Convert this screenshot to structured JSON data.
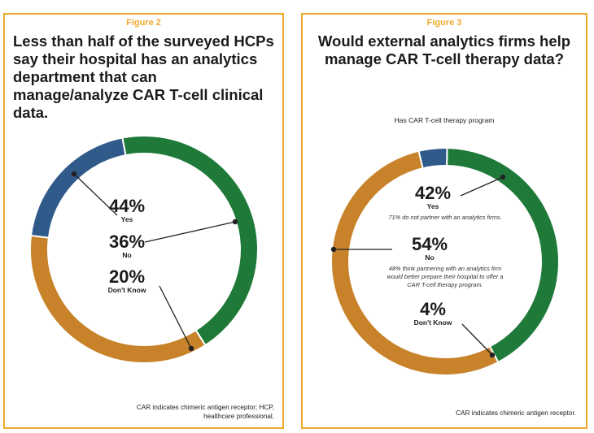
{
  "chart_data": [
    {
      "type": "pie",
      "figure_label": "Figure 2",
      "title": "Less than half of the surveyed HCPs say their hospital has an analytics department that can manage/analyze CAR T-cell clinical data.",
      "footnote": "CAR indicates chimeric antigen receptor; HCP, healthcare professional.",
      "slices": [
        {
          "label": "Yes",
          "value": 44,
          "value_label": "44%",
          "color": "#1f7a3a"
        },
        {
          "label": "No",
          "value": 36,
          "value_label": "36%",
          "color": "#c8822a"
        },
        {
          "label": "Don't Know",
          "value": 20,
          "value_label": "20%",
          "color": "#2f5a8a"
        }
      ]
    },
    {
      "type": "pie",
      "figure_label": "Figure 3",
      "title": "Would external analytics firms help manage CAR T-cell therapy data?",
      "subtitle": "Has CAR T-cell therapy program",
      "footnote": "CAR indicates chimeric antigen receptor.",
      "slices": [
        {
          "label": "Yes",
          "value": 42,
          "value_label": "42%",
          "color": "#1f7a3a",
          "note": "71% do not partner with an analytics firms."
        },
        {
          "label": "No",
          "value": 54,
          "value_label": "54%",
          "color": "#c8822a",
          "note": "48% think partnering with an analytics firm would better prepare their hospital to offer a CAR T-cell therapy program."
        },
        {
          "label": "Don't Know",
          "value": 4,
          "value_label": "4%",
          "color": "#2f5a8a"
        }
      ]
    }
  ]
}
